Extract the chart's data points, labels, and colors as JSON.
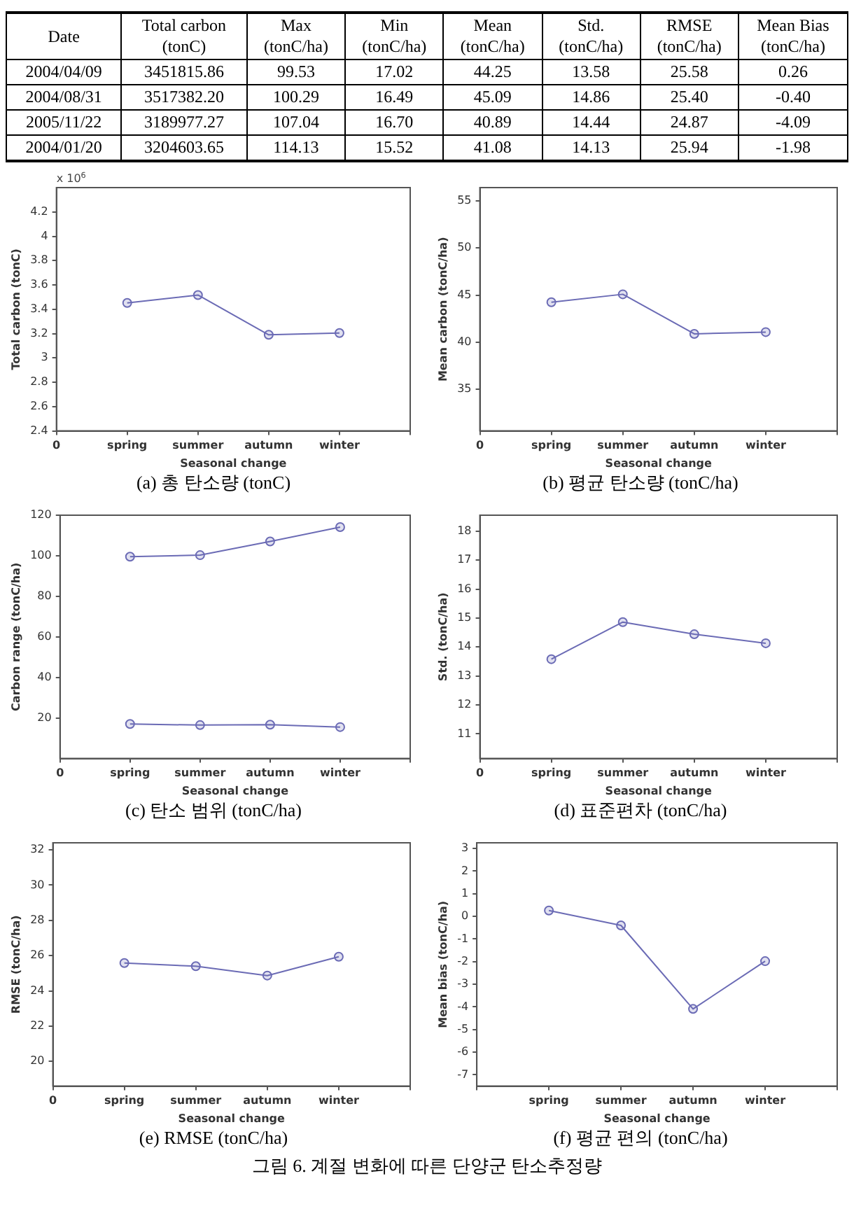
{
  "chart_data": [
    {
      "type": "heatmap",
      "data_labels": true,
      "ylabel": "Date",
      "categories": [
        "Total carbon (tonC)",
        "Max (tonC/ha)",
        "Min (tonC/ha)",
        "Mean (tonC/ha)",
        "Std. (tonC/ha)",
        "RMSE (tonC/ha)",
        "Mean Bias (tonC/ha)"
      ],
      "y_categories": [
        "2004/04/09",
        "2004/08/31",
        "2005/11/22",
        "2004/01/20"
      ],
      "cells": [
        [
          3451815.86,
          99.53,
          17.02,
          44.25,
          13.58,
          25.58,
          0.26
        ],
        [
          3517382.2,
          100.29,
          16.49,
          45.09,
          14.86,
          25.4,
          -0.4
        ],
        [
          3189977.27,
          107.04,
          16.7,
          40.89,
          14.44,
          24.87,
          -4.09
        ],
        [
          3204603.65,
          114.13,
          15.52,
          41.08,
          14.13,
          25.94,
          -1.98
        ]
      ],
      "cell_labels": [
        [
          "3451815.86",
          "99.53",
          "17.02",
          "44.25",
          "13.58",
          "25.58",
          "0.26"
        ],
        [
          "3517382.20",
          "100.29",
          "16.49",
          "45.09",
          "14.86",
          "25.40",
          "-0.40"
        ],
        [
          "3189977.27",
          "107.04",
          "16.70",
          "40.89",
          "14.44",
          "24.87",
          "-4.09"
        ],
        [
          "3204603.65",
          "114.13",
          "15.52",
          "41.08",
          "14.13",
          "25.94",
          "-1.98"
        ]
      ]
    },
    {
      "type": "line",
      "title": "(a) 총 탄소량 (tonC)",
      "xlabel": "Seasonal change",
      "ylabel": "Total carbon (tonC)",
      "annotations": [
        "x 10$^{6}$"
      ],
      "categories": [
        "0",
        "spring",
        "summer",
        "autumn",
        "winter",
        null
      ],
      "ylim": [
        2.4,
        4.4
      ],
      "yticks": [
        2.4,
        2.6,
        2.8,
        3,
        3.2,
        3.4,
        3.6,
        3.8,
        4,
        4.2
      ],
      "marker": "circle",
      "legend": false,
      "grid": false,
      "series": [
        {
          "color": "#6b6bb5",
          "values": [
            null,
            3.452,
            3.517,
            3.19,
            3.205,
            null
          ]
        }
      ]
    },
    {
      "type": "line",
      "title": "(b) 평균 탄소량 (tonC/ha)",
      "xlabel": "Seasonal change",
      "ylabel": "Mean carbon (tonC/ha)",
      "categories": [
        "0",
        "spring",
        "summer",
        "autumn",
        "winter",
        null
      ],
      "ylim": [
        30.6,
        56.4
      ],
      "yticks": [
        35,
        40,
        45,
        50,
        55
      ],
      "marker": "circle",
      "legend": false,
      "grid": false,
      "series": [
        {
          "color": "#6b6bb5",
          "values": [
            null,
            44.25,
            45.09,
            40.89,
            41.08,
            null
          ]
        }
      ]
    },
    {
      "type": "line",
      "title": "(c) 탄소 범위 (tonC/ha)",
      "xlabel": "Seasonal change",
      "ylabel": "Carbon range (tonC/ha)",
      "categories": [
        "0",
        "spring",
        "summer",
        "autumn",
        "winter",
        null
      ],
      "ylim": [
        0,
        120
      ],
      "yticks": [
        20,
        40,
        60,
        80,
        100,
        120
      ],
      "marker": "circle",
      "legend": false,
      "grid": false,
      "series": [
        {
          "color": "#6b6bb5",
          "values": [
            null,
            99.53,
            100.29,
            107.04,
            114.13,
            null
          ]
        },
        {
          "color": "#6b6bb5",
          "values": [
            null,
            17.02,
            16.49,
            16.7,
            15.52,
            null
          ]
        }
      ]
    },
    {
      "type": "line",
      "title": "(d) 표준편차 (tonC/ha)",
      "xlabel": "Seasonal change",
      "ylabel": "Std. (tonC/ha)",
      "categories": [
        "0",
        "spring",
        "summer",
        "autumn",
        "winter",
        null
      ],
      "ylim": [
        10.15,
        18.55
      ],
      "yticks": [
        11,
        12,
        13,
        14,
        15,
        16,
        17,
        18
      ],
      "marker": "circle",
      "legend": false,
      "grid": false,
      "series": [
        {
          "color": "#6b6bb5",
          "values": [
            null,
            13.58,
            14.86,
            14.44,
            14.13,
            null
          ]
        }
      ]
    },
    {
      "type": "line",
      "title": "(e) RMSE (tonC/ha)",
      "xlabel": "Seasonal change",
      "ylabel": "RMSE (tonC/ha)",
      "categories": [
        "0",
        "spring",
        "summer",
        "autumn",
        "winter",
        null
      ],
      "ylim": [
        18.6,
        32.4
      ],
      "yticks": [
        20,
        22,
        24,
        26,
        28,
        30,
        32
      ],
      "marker": "circle",
      "legend": false,
      "grid": false,
      "series": [
        {
          "color": "#6b6bb5",
          "values": [
            null,
            25.58,
            25.4,
            24.87,
            25.94,
            null
          ]
        }
      ]
    },
    {
      "type": "line",
      "title": "(f) 평균 편의 (tonC/ha)",
      "xlabel": "Seasonal change",
      "ylabel": "Mean bias (tonC/ha)",
      "annotations": [
        "그림 6. 계절 변화에 따른 단양군 탄소추정량"
      ],
      "categories": [
        null,
        "spring",
        "summer",
        "autumn",
        "winter",
        null
      ],
      "ylim": [
        -7.5,
        3.25
      ],
      "yticks": [
        -7,
        -6,
        -5,
        -4,
        -3,
        -2,
        -1,
        0,
        1,
        2,
        3
      ],
      "marker": "circle",
      "legend": false,
      "grid": false,
      "series": [
        {
          "color": "#6b6bb5",
          "values": [
            null,
            0.26,
            -0.4,
            -4.09,
            -1.98,
            null
          ]
        }
      ]
    }
  ]
}
